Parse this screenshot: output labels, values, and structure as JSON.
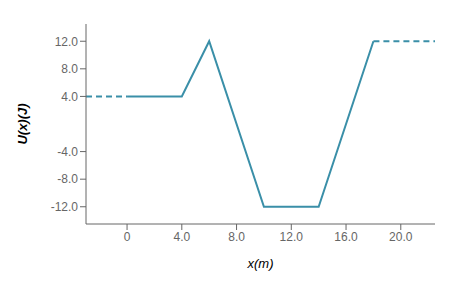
{
  "chart_data": {
    "type": "line",
    "xlabel": "x(m)",
    "ylabel": "U(x)(J)",
    "series": [
      {
        "x": [
          0,
          4,
          6,
          10,
          14,
          18
        ],
        "values": [
          4.0,
          4.0,
          12.0,
          -12.0,
          -12.0,
          12.0
        ],
        "color": "#3a8fa8",
        "line_style": "solid"
      },
      {
        "x": [
          -3,
          0
        ],
        "values": [
          4.0,
          4.0
        ],
        "color": "#3a8fa8",
        "line_style": "dashed"
      },
      {
        "x": [
          18,
          22.5
        ],
        "values": [
          12.0,
          12.0
        ],
        "color": "#3a8fa8",
        "line_style": "dashed"
      }
    ],
    "xlim": [
      -3,
      22.5
    ],
    "ylim": [
      -14.5,
      14.5
    ],
    "xticks": [
      0,
      {
        "value": 4,
        "label": "4.0"
      },
      {
        "value": 8,
        "label": "8.0"
      },
      {
        "value": 12,
        "label": "12.0"
      },
      {
        "value": 16,
        "label": "16.0"
      },
      {
        "value": 20,
        "label": "20.0"
      }
    ],
    "yticks": [
      {
        "value": -12,
        "label": "-12.0"
      },
      {
        "value": -8,
        "label": "-8.0"
      },
      {
        "value": -4,
        "label": "-4.0"
      },
      {
        "value": 4,
        "label": "4.0"
      },
      {
        "value": 8,
        "label": "8.0"
      },
      {
        "value": 12,
        "label": "12.0"
      }
    ],
    "grid": false
  }
}
